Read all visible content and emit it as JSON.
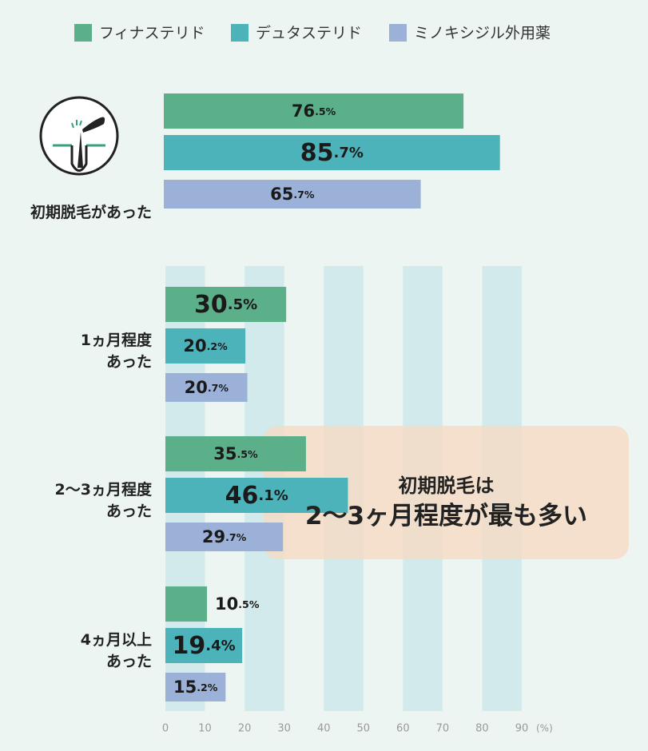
{
  "chart_data": {
    "type": "bar",
    "orientation": "horizontal",
    "categories": [
      "初期脱毛があった",
      "1ヵ月程度\nあった",
      "2〜3ヵ月程度\nあった",
      "4ヵ月以上\nあった"
    ],
    "series": [
      {
        "name": "フィナステリド",
        "color": "#5bb08a",
        "values": [
          76.5,
          30.5,
          35.5,
          10.5
        ],
        "value_labels": [
          "76.5%",
          "30.5%",
          "35.5%",
          "10.5%"
        ]
      },
      {
        "name": "デュタステリド",
        "color": "#4db3bb",
        "values": [
          85.7,
          20.2,
          46.1,
          19.4
        ],
        "value_labels": [
          "85.7%",
          "20.2%",
          "46.1%",
          "19.4%"
        ]
      },
      {
        "name": "ミノキシジル外用薬",
        "color": "#9cb1d8",
        "values": [
          65.7,
          20.7,
          29.7,
          15.2
        ],
        "value_labels": [
          "65.7%",
          "20.7%",
          "29.7%",
          "15.2%"
        ]
      }
    ],
    "xlim": [
      0,
      90
    ],
    "xticks": [
      0,
      10,
      20,
      30,
      40,
      50,
      60,
      70,
      80,
      90
    ],
    "x_unit": "(%)",
    "annotation": [
      "初期脱毛は",
      "2〜3ヶ月程度が最も多い"
    ]
  }
}
